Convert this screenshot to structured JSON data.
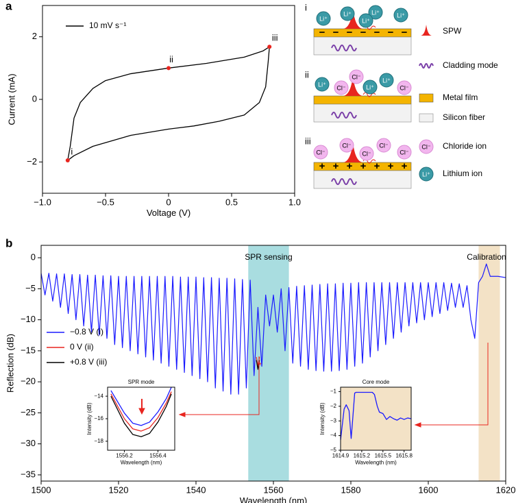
{
  "panel_labels": [
    "a",
    "b"
  ],
  "chart_data": [
    {
      "type": "line",
      "xlabel": "Voltage (V)",
      "ylabel": "Current (mA)",
      "xlim": [
        -1,
        1
      ],
      "ylim": [
        -3,
        3
      ],
      "xticks": [
        {
          "value": -1,
          "label": "−1.0"
        },
        {
          "value": -0.5,
          "label": "−0.5"
        },
        0,
        0.5,
        {
          "value": 1,
          "label": "1.0"
        }
      ],
      "yticks": [
        {
          "value": -2,
          "label": "−2"
        },
        0,
        2
      ],
      "series": [
        {
          "name": "10 mV s⁻¹",
          "color": "#000000",
          "x": [
            -0.8,
            -0.78,
            -0.75,
            -0.7,
            -0.6,
            -0.5,
            -0.3,
            0,
            0.3,
            0.6,
            0.75,
            0.8,
            0.79,
            0.77,
            0.72,
            0.6,
            0.4,
            0.2,
            0,
            -0.3,
            -0.6,
            -0.75,
            -0.8
          ],
          "values": [
            -1.95,
            -1.5,
            -0.6,
            -0.1,
            0.35,
            0.6,
            0.82,
            1.0,
            1.15,
            1.35,
            1.55,
            1.68,
            1.2,
            0.4,
            -0.1,
            -0.5,
            -0.7,
            -0.85,
            -0.95,
            -1.15,
            -1.5,
            -1.8,
            -1.95
          ]
        }
      ],
      "points": {
        "color": "#e8251f",
        "x": [
          -0.8,
          0,
          0.8
        ],
        "values": [
          -1.95,
          1.0,
          1.68
        ],
        "labels": [
          "i",
          "ii",
          "iii"
        ]
      }
    },
    {
      "type": "line",
      "xlabel": "Wavelength (nm)",
      "ylabel": "Reflection (dB)",
      "xlim": [
        1500,
        1620
      ],
      "ylim": [
        -36,
        2
      ],
      "xticks": [
        1500,
        1520,
        1540,
        1560,
        1580,
        1600,
        1620
      ],
      "yticks": [
        0,
        {
          "value": -5,
          "label": "−5"
        },
        {
          "value": -10,
          "label": "−10"
        },
        {
          "value": -15,
          "label": "−15"
        },
        {
          "value": -20,
          "label": "−20"
        },
        {
          "value": -25,
          "label": "−25"
        },
        {
          "value": -30,
          "label": "−30"
        },
        {
          "value": -35,
          "label": "−35"
        }
      ],
      "spans": [
        {
          "label": "SPR sensing",
          "range": [
            1553.5,
            1564
          ],
          "color": "#a9dde0"
        },
        {
          "label": "Calibration",
          "range": [
            1613,
            1618.5
          ],
          "color": "#f3e2c6"
        }
      ],
      "series": [
        {
          "name": "−0.8 V (i)",
          "color": "#1a1aff",
          "x": [
            1500,
            1501,
            1502,
            1503,
            1504,
            1505,
            1506,
            1507,
            1508,
            1509,
            1510,
            1511,
            1512,
            1513,
            1514,
            1515,
            1516,
            1517,
            1518,
            1519,
            1520,
            1521,
            1522,
            1523,
            1524,
            1525,
            1526,
            1527,
            1528,
            1529,
            1530,
            1531,
            1532,
            1533,
            1534,
            1535,
            1536,
            1537,
            1538,
            1539,
            1540,
            1541,
            1542,
            1543,
            1544,
            1545,
            1546,
            1547,
            1548,
            1549,
            1550,
            1551,
            1552,
            1553,
            1554,
            1555,
            1556,
            1557,
            1558,
            1559,
            1560,
            1561,
            1562,
            1563,
            1564,
            1565,
            1566,
            1567,
            1568,
            1569,
            1570,
            1571,
            1572,
            1573,
            1574,
            1575,
            1576,
            1577,
            1578,
            1579,
            1580,
            1581,
            1582,
            1583,
            1584,
            1585,
            1586,
            1587,
            1588,
            1589,
            1590,
            1591,
            1592,
            1593,
            1594,
            1595,
            1596,
            1597,
            1598,
            1599,
            1600,
            1601,
            1602,
            1603,
            1604,
            1605,
            1606,
            1607,
            1608,
            1609,
            1610,
            1611,
            1612,
            1613,
            1614,
            1615,
            1616,
            1618,
            1620
          ],
          "values": [
            -2.5,
            -6,
            -2.5,
            -7,
            -2.6,
            -8,
            -2.6,
            -9,
            -2.7,
            -10,
            -2.7,
            -11,
            -2.8,
            -12,
            -2.8,
            -12.5,
            -2.9,
            -13,
            -2.9,
            -14,
            -3,
            -14.5,
            -3,
            -15,
            -3,
            -15.5,
            -3,
            -16,
            -3,
            -16.5,
            -3,
            -17,
            -3,
            -17.5,
            -3,
            -18,
            -3.1,
            -18.5,
            -3.1,
            -19,
            -3.1,
            -19.5,
            -3.2,
            -20,
            -3.2,
            -21,
            -3.3,
            -21.5,
            -3.3,
            -22,
            -3.4,
            -22,
            -3.5,
            -21,
            -3.6,
            -19,
            -8,
            -17.5,
            -6,
            -11,
            -6,
            -12,
            -5,
            -15,
            -4.8,
            -17,
            -4.6,
            -17.5,
            -4.5,
            -18,
            -4.4,
            -18.2,
            -4.3,
            -18.3,
            -4.2,
            -18.3,
            -4.2,
            -18.2,
            -4.1,
            -18,
            -4.1,
            -17.5,
            -4,
            -17,
            -4,
            -16,
            -4,
            -15,
            -4,
            -14,
            -4,
            -13,
            -4,
            -12,
            -4,
            -11,
            -4,
            -10.5,
            -4,
            -10,
            -4,
            -9.5,
            -4,
            -9,
            -4,
            -8.5,
            -4.1,
            -8,
            -4.2,
            -8,
            -4.5,
            -10,
            -13,
            -4,
            -3,
            -1,
            -3,
            -3,
            -3.2
          ]
        },
        {
          "name": "0 V (ii)",
          "color": "#e8251f",
          "x": [
            1555.6,
            1556,
            1556.4
          ],
          "values": [
            -16,
            -17.5,
            -16
          ]
        },
        {
          "name": "+0.8 V (iii)",
          "color": "#000000",
          "x": [
            1555.6,
            1556,
            1556.4
          ],
          "values": [
            -16.5,
            -18,
            -16.5
          ]
        }
      ]
    },
    {
      "type": "line",
      "title": "SPR mode",
      "xlabel": "Wavelength (nm)",
      "ylabel": "Intensity (dB)",
      "xlim": [
        1556.1,
        1556.5
      ],
      "ylim": [
        -18.8,
        -13.2
      ],
      "xticks": [
        1556.2,
        1556.4
      ],
      "yticks": [
        {
          "value": -18,
          "label": "−18"
        },
        {
          "value": -16,
          "label": "−16"
        },
        {
          "value": -14,
          "label": "−14"
        }
      ],
      "series": [
        {
          "color": "#1a1aff",
          "x": [
            1556.12,
            1556.2,
            1556.25,
            1556.3,
            1556.35,
            1556.4,
            1556.45,
            1556.48
          ],
          "values": [
            -13.5,
            -15.5,
            -16.4,
            -16.6,
            -16.3,
            -15.4,
            -14.2,
            -13.2
          ]
        },
        {
          "color": "#e8251f",
          "x": [
            1556.12,
            1556.2,
            1556.25,
            1556.3,
            1556.35,
            1556.4,
            1556.45,
            1556.48
          ],
          "values": [
            -13.8,
            -16,
            -16.9,
            -17.1,
            -16.8,
            -15.9,
            -14.6,
            -13.6
          ]
        },
        {
          "color": "#000000",
          "x": [
            1556.12,
            1556.2,
            1556.25,
            1556.3,
            1556.35,
            1556.4,
            1556.45,
            1556.48
          ],
          "values": [
            -14,
            -16.4,
            -17.4,
            -17.6,
            -17.3,
            -16.3,
            -14.9,
            -13.8
          ]
        }
      ]
    },
    {
      "type": "line",
      "title": "Core mode",
      "xlabel": "Wavelength (nm)",
      "ylabel": "Intensity (dB)",
      "xlim": [
        1614.9,
        1615.9
      ],
      "ylim": [
        -5,
        -0.7
      ],
      "xticks": [
        1614.9,
        1615.2,
        1615.5,
        1615.8
      ],
      "yticks": [
        {
          "value": -5,
          "label": "−5"
        },
        {
          "value": -4,
          "label": "−4"
        },
        {
          "value": -3,
          "label": "−3"
        },
        {
          "value": -2,
          "label": "−2"
        },
        {
          "value": -1,
          "label": "−1"
        }
      ],
      "series": [
        {
          "color": "#1a1aff",
          "x": [
            1614.9,
            1614.95,
            1614.98,
            1615.02,
            1615.05,
            1615.07,
            1615.1,
            1615.12,
            1615.2,
            1615.35,
            1615.38,
            1615.42,
            1615.45,
            1615.5,
            1615.55,
            1615.6,
            1615.65,
            1615.7,
            1615.75,
            1615.8,
            1615.85,
            1615.9
          ],
          "values": [
            -4.3,
            -2.2,
            -1.9,
            -2.3,
            -4.2,
            -3,
            -1.1,
            -1.05,
            -1.05,
            -1.05,
            -1.2,
            -2,
            -2.4,
            -2.5,
            -2.9,
            -2.7,
            -2.85,
            -2.95,
            -2.8,
            -2.9,
            -2.8,
            -2.85
          ]
        }
      ]
    }
  ],
  "annotation": "*",
  "schematic": {
    "rows": [
      "i",
      "ii",
      "iii"
    ],
    "legend": [
      "SPW",
      "Cladding mode",
      "Metal film",
      "Silicon fiber",
      "Chloride ion",
      "Lithium ion"
    ],
    "ions": {
      "lithium": "Li⁺",
      "chloride": "Cl⁻"
    },
    "charges": {
      "negative": "−",
      "positive": "+"
    }
  }
}
